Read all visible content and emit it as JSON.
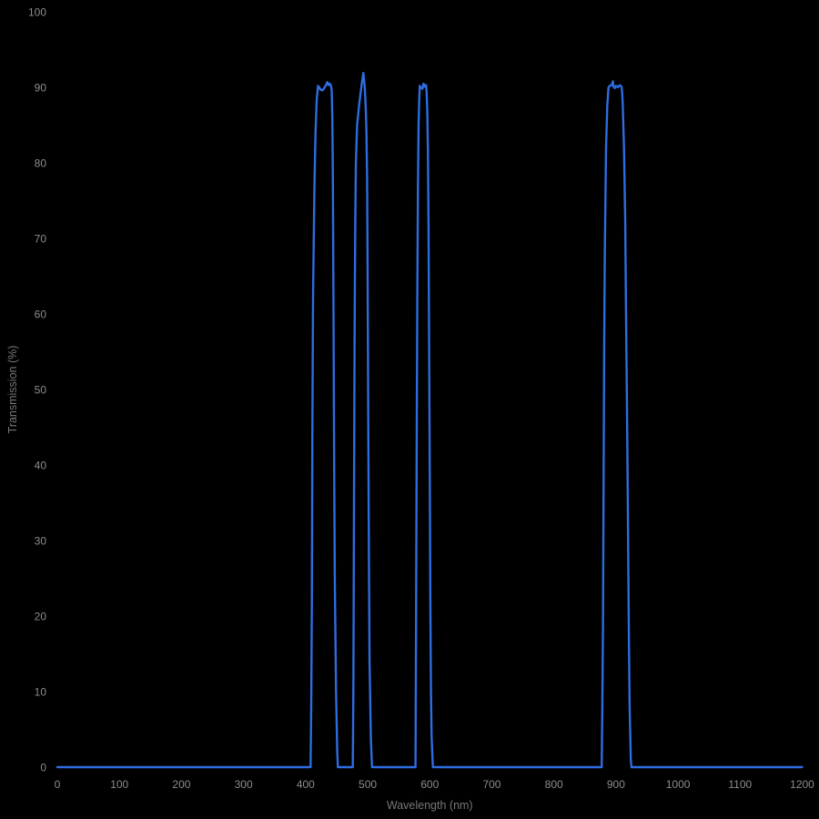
{
  "chart_data": {
    "type": "line",
    "title": "",
    "xlabel": "Wavelength (nm)",
    "ylabel": "Transmission (%)",
    "xlim": [
      0,
      1200
    ],
    "ylim": [
      0,
      100
    ],
    "x_ticks": [
      0,
      100,
      200,
      300,
      400,
      500,
      600,
      700,
      800,
      900,
      1000,
      1100,
      1200
    ],
    "y_ticks": [
      0,
      10,
      20,
      30,
      40,
      50,
      60,
      70,
      80,
      90,
      100
    ],
    "grid": false,
    "legend": "none",
    "background_color": "#000000",
    "tick_label_color": "#8c8c8c",
    "axis_title_color": "#777777",
    "line_color": "#2e6de0",
    "bands_summary": [
      {
        "range_nm": [
          408,
          452
        ],
        "peak_transmission_pct": 90.7
      },
      {
        "range_nm": [
          476,
          507
        ],
        "peak_transmission_pct": 91.9
      },
      {
        "range_nm": [
          577,
          605
        ],
        "peak_transmission_pct": 90.5
      },
      {
        "range_nm": [
          877,
          925
        ],
        "peak_transmission_pct": 90.8
      }
    ],
    "series": [
      {
        "name": "Transmission",
        "points": [
          [
            0,
            0
          ],
          [
            100,
            0
          ],
          [
            200,
            0
          ],
          [
            300,
            0
          ],
          [
            380,
            0
          ],
          [
            405,
            0
          ],
          [
            408,
            0
          ],
          [
            409,
            8
          ],
          [
            410,
            22
          ],
          [
            411,
            45
          ],
          [
            412,
            62
          ],
          [
            414,
            76
          ],
          [
            416,
            84
          ],
          [
            418,
            88.5
          ],
          [
            420,
            90.2
          ],
          [
            422,
            90.0
          ],
          [
            424,
            89.7
          ],
          [
            427,
            89.6
          ],
          [
            430,
            89.9
          ],
          [
            433,
            90.3
          ],
          [
            435,
            90.7
          ],
          [
            437,
            90.3
          ],
          [
            439,
            90.5
          ],
          [
            441,
            90.2
          ],
          [
            442,
            89.5
          ],
          [
            443,
            86
          ],
          [
            444,
            78
          ],
          [
            445,
            60
          ],
          [
            446,
            40
          ],
          [
            447,
            25
          ],
          [
            449,
            10
          ],
          [
            451,
            2
          ],
          [
            452,
            0
          ],
          [
            460,
            0
          ],
          [
            470,
            0
          ],
          [
            476,
            0
          ],
          [
            477,
            12
          ],
          [
            478,
            35
          ],
          [
            479,
            58
          ],
          [
            480,
            72
          ],
          [
            481,
            80
          ],
          [
            483,
            85
          ],
          [
            486,
            87.5
          ],
          [
            489,
            89.5
          ],
          [
            491,
            90.8
          ],
          [
            493,
            91.9
          ],
          [
            494,
            91.2
          ],
          [
            495,
            90.3
          ],
          [
            496,
            89
          ],
          [
            497,
            87
          ],
          [
            498,
            84
          ],
          [
            499,
            78
          ],
          [
            500,
            65
          ],
          [
            501,
            45
          ],
          [
            502,
            28
          ],
          [
            503,
            14
          ],
          [
            505,
            4
          ],
          [
            507,
            0
          ],
          [
            520,
            0
          ],
          [
            550,
            0
          ],
          [
            575,
            0
          ],
          [
            577,
            0
          ],
          [
            578,
            18
          ],
          [
            579,
            42
          ],
          [
            580,
            63
          ],
          [
            581,
            77
          ],
          [
            582,
            85
          ],
          [
            583,
            88.5
          ],
          [
            584,
            90.2
          ],
          [
            586,
            90.0
          ],
          [
            588,
            89.8
          ],
          [
            589,
            90.0
          ],
          [
            590,
            90.5
          ],
          [
            592,
            90.1
          ],
          [
            594,
            90.3
          ],
          [
            595,
            89.5
          ],
          [
            596,
            87
          ],
          [
            597,
            82
          ],
          [
            598,
            72
          ],
          [
            599,
            55
          ],
          [
            600,
            38
          ],
          [
            601,
            22
          ],
          [
            602,
            10
          ],
          [
            603,
            4
          ],
          [
            605,
            0
          ],
          [
            620,
            0
          ],
          [
            700,
            0
          ],
          [
            800,
            0
          ],
          [
            870,
            0
          ],
          [
            877,
            0
          ],
          [
            878,
            8
          ],
          [
            879,
            18
          ],
          [
            880,
            35
          ],
          [
            881,
            55
          ],
          [
            882,
            68
          ],
          [
            884,
            82
          ],
          [
            886,
            87.5
          ],
          [
            888,
            90.0
          ],
          [
            890,
            90.2
          ],
          [
            893,
            90.3
          ],
          [
            895,
            90.8
          ],
          [
            896,
            90.1
          ],
          [
            898,
            89.9
          ],
          [
            900,
            90.2
          ],
          [
            903,
            90.0
          ],
          [
            906,
            90.3
          ],
          [
            909,
            90.1
          ],
          [
            910,
            89.3
          ],
          [
            911,
            87.5
          ],
          [
            913,
            82
          ],
          [
            915,
            72
          ],
          [
            916,
            62
          ],
          [
            918,
            45
          ],
          [
            920,
            26
          ],
          [
            921,
            16
          ],
          [
            922,
            8
          ],
          [
            924,
            1
          ],
          [
            925,
            0
          ],
          [
            950,
            0
          ],
          [
            1000,
            0
          ],
          [
            1100,
            0
          ],
          [
            1200,
            0
          ]
        ]
      }
    ]
  }
}
